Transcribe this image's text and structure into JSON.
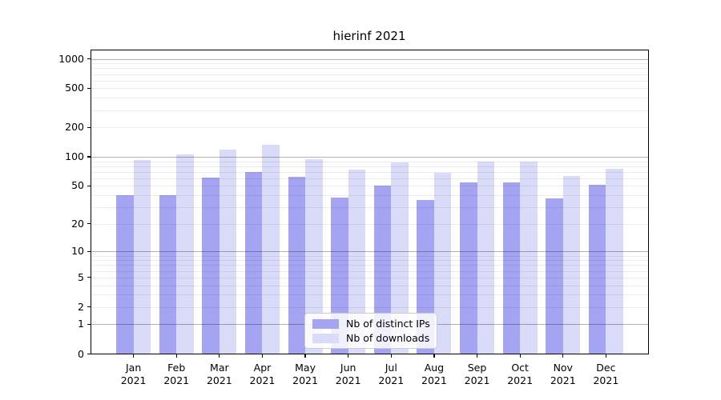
{
  "title": "hierinf 2021",
  "chart_data": {
    "type": "bar",
    "title": "hierinf 2021",
    "categories": [
      "Jan 2021",
      "Feb 2021",
      "Mar 2021",
      "Apr 2021",
      "May 2021",
      "Jun 2021",
      "Jul 2021",
      "Aug 2021",
      "Sep 2021",
      "Oct 2021",
      "Nov 2021",
      "Dec 2021"
    ],
    "x_tick_line1": [
      "Jan",
      "Feb",
      "Mar",
      "Apr",
      "May",
      "Jun",
      "Jul",
      "Aug",
      "Sep",
      "Oct",
      "Nov",
      "Dec"
    ],
    "x_tick_line2": "2021",
    "series": [
      {
        "name": "Nb of distinct IPs",
        "color": "#a4a4f2",
        "values": [
          40,
          40,
          61,
          70,
          62,
          38,
          50,
          36,
          55,
          54,
          37,
          51
        ]
      },
      {
        "name": "Nb of downloads",
        "color": "#dadaf9",
        "values": [
          93,
          105,
          118,
          134,
          95,
          74,
          88,
          68,
          90,
          89,
          63,
          75
        ]
      }
    ],
    "yscale": "log1p",
    "ylim": [
      0,
      1250
    ],
    "y_ticks": [
      1000,
      500,
      200,
      100,
      50,
      20,
      10,
      5,
      2,
      1,
      0
    ],
    "grid": "horizontal major (1,10,100,1000) + minor (2-9 per decade)",
    "legend_position": "lower center inside plot"
  },
  "legend": {
    "items": [
      {
        "label": "Nb of distinct IPs",
        "color": "#a4a4f2"
      },
      {
        "label": "Nb of downloads",
        "color": "#dadaf9"
      }
    ]
  }
}
